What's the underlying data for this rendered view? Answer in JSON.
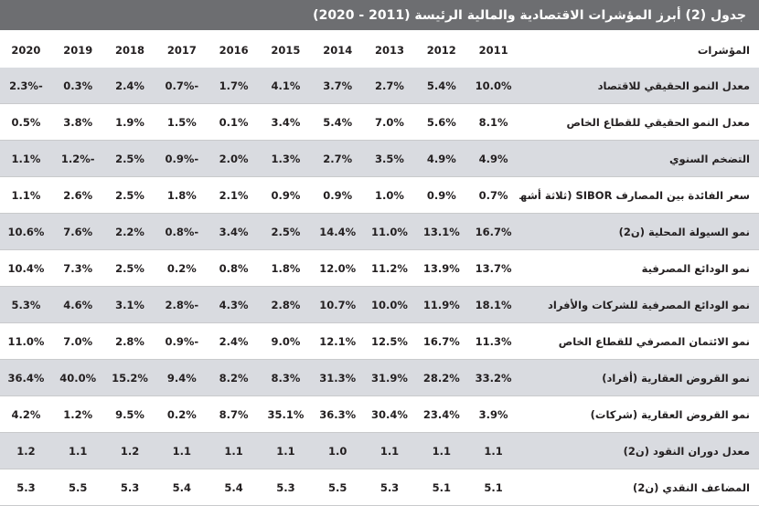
{
  "title": "جدول (2) أبرز المؤشرات الاقتصادية والمالية الرئيسة (2011 - 2020)",
  "header": {
    "label": "المؤشرات",
    "years": [
      "2011",
      "2012",
      "2013",
      "2014",
      "2015",
      "2016",
      "2017",
      "2018",
      "2019",
      "2020"
    ]
  },
  "rows": [
    {
      "label": "معدل النمو الحقيقي للاقتصاد",
      "values": [
        "10.0%",
        "5.4%",
        "2.7%",
        "3.7%",
        "4.1%",
        "1.7%",
        "-0.7%",
        "2.4%",
        "0.3%",
        "-2.3%"
      ]
    },
    {
      "label": "معدل النمو الحقيقي للقطاع الخاص",
      "values": [
        "8.1%",
        "5.6%",
        "7.0%",
        "5.4%",
        "3.4%",
        "0.1%",
        "1.5%",
        "1.9%",
        "3.8%",
        "0.5%"
      ]
    },
    {
      "label": "التضخم السنوي",
      "values": [
        "4.9%",
        "4.9%",
        "3.5%",
        "2.7%",
        "1.3%",
        "2.0%",
        "-0.9%",
        "2.5%",
        "-1.2%",
        "1.1%"
      ]
    },
    {
      "label": "سعر الفائدة بين المصارف SIBOR (ثلاثة أشهر)",
      "values": [
        "0.7%",
        "0.9%",
        "1.0%",
        "0.9%",
        "0.9%",
        "2.1%",
        "1.8%",
        "2.5%",
        "2.6%",
        "1.1%"
      ]
    },
    {
      "label": "نمو السيولة المحلية (ن2)",
      "values": [
        "16.7%",
        "13.1%",
        "11.0%",
        "14.4%",
        "2.5%",
        "3.4%",
        "-0.8%",
        "2.2%",
        "7.6%",
        "10.6%"
      ]
    },
    {
      "label": "نمو الودائع المصرفية",
      "values": [
        "13.7%",
        "13.9%",
        "11.2%",
        "12.0%",
        "1.8%",
        "0.8%",
        "0.2%",
        "2.5%",
        "7.3%",
        "10.4%"
      ]
    },
    {
      "label": "نمو الودائع المصرفية للشركات والأفراد",
      "values": [
        "18.1%",
        "11.9%",
        "10.0%",
        "10.7%",
        "2.8%",
        "4.3%",
        "-2.8%",
        "3.1%",
        "4.6%",
        "5.3%"
      ]
    },
    {
      "label": "نمو الائتمان المصرفي للقطاع الخاص",
      "values": [
        "11.3%",
        "16.7%",
        "12.5%",
        "12.1%",
        "9.0%",
        "2.4%",
        "-0.9%",
        "2.8%",
        "7.0%",
        "11.0%"
      ]
    },
    {
      "label": "نمو القروض العقارية (أفراد)",
      "values": [
        "33.2%",
        "28.2%",
        "31.9%",
        "31.3%",
        "8.3%",
        "8.2%",
        "9.4%",
        "15.2%",
        "40.0%",
        "36.4%"
      ]
    },
    {
      "label": "نمو القروض العقارية (شركات)",
      "values": [
        "3.9%",
        "23.4%",
        "30.4%",
        "36.3%",
        "35.1%",
        "8.7%",
        "0.2%",
        "9.5%",
        "1.2%",
        "4.2%"
      ]
    },
    {
      "label": "معدل دوران النقود (ن2)",
      "values": [
        "1.1",
        "1.1",
        "1.1",
        "1.0",
        "1.1",
        "1.1",
        "1.1",
        "1.2",
        "1.1",
        "1.2"
      ]
    },
    {
      "label": "المضاعف النقدي (ن2)",
      "values": [
        "5.1",
        "5.1",
        "5.3",
        "5.5",
        "5.3",
        "5.4",
        "5.4",
        "5.3",
        "5.5",
        "5.3"
      ]
    }
  ]
}
